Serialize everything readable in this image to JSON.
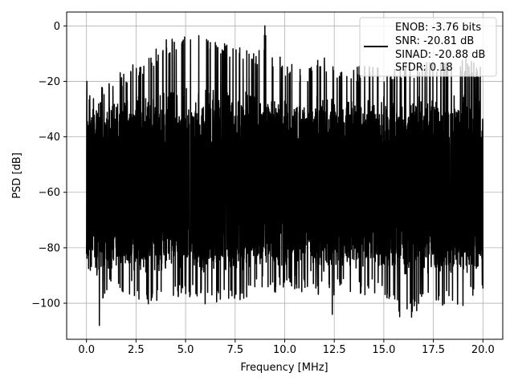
{
  "chart_data": {
    "type": "line",
    "title": "",
    "xlabel": "Frequency [MHz]",
    "ylabel": "PSD [dB]",
    "xlim": [
      -1.0,
      21.0
    ],
    "ylim": [
      -113,
      5
    ],
    "xticks": [
      0.0,
      2.5,
      5.0,
      7.5,
      10.0,
      12.5,
      15.0,
      17.5,
      20.0
    ],
    "xtick_labels": [
      "0.0",
      "2.5",
      "5.0",
      "7.5",
      "10.0",
      "12.5",
      "15.0",
      "17.5",
      "20.0"
    ],
    "yticks": [
      0,
      -20,
      -40,
      -60,
      -80,
      -100
    ],
    "ytick_labels": [
      "0",
      "−20",
      "−40",
      "−60",
      "−80",
      "−100"
    ],
    "grid": true,
    "legend_position": "top-right",
    "series": [
      {
        "name": "",
        "color": "#000000",
        "x_range": [
          0.0,
          20.0
        ],
        "envelope": {
          "x": [
            0.0,
            0.1,
            0.5,
            1.0,
            2.0,
            3.0,
            4.0,
            5.0,
            6.0,
            7.0,
            8.0,
            8.9,
            9.05,
            9.2,
            10.0,
            11.0,
            12.0,
            13.0,
            14.0,
            15.0,
            16.0,
            17.0,
            18.0,
            19.0,
            20.0
          ],
          "upper": [
            -20,
            -25,
            -28,
            -22,
            -18,
            -14,
            -8,
            -5,
            -6,
            -9,
            -10,
            -12,
            0,
            -12,
            -15,
            -18,
            -14,
            -18,
            -17,
            -18,
            -16,
            -16,
            -15,
            -14,
            -18
          ],
          "lower": [
            -95,
            -103,
            -104,
            -93,
            -93,
            -98,
            -97,
            -95,
            -98,
            -96,
            -96,
            -93,
            -95,
            -95,
            -92,
            -94,
            -95,
            -93,
            -94,
            -94,
            -104,
            -98,
            -98,
            -98,
            -93
          ],
          "typical_upper": -40,
          "typical_lower": -75
        },
        "peaks": [
          {
            "x": 0.02,
            "y": -20
          },
          {
            "x": 9.0,
            "y": 0
          },
          {
            "x": 4.95,
            "y": -4
          },
          {
            "x": 5.25,
            "y": -5
          },
          {
            "x": 6.1,
            "y": -6
          },
          {
            "x": 6.5,
            "y": -6
          },
          {
            "x": 12.4,
            "y": -104
          },
          {
            "x": 16.4,
            "y": -105
          },
          {
            "x": 0.65,
            "y": -108
          }
        ]
      }
    ],
    "legend_lines": [
      "ENOB: -3.76 bits",
      "SNR: -20.81 dB",
      "SINAD: -20.88 dB",
      "SFDR: 0.18"
    ]
  }
}
